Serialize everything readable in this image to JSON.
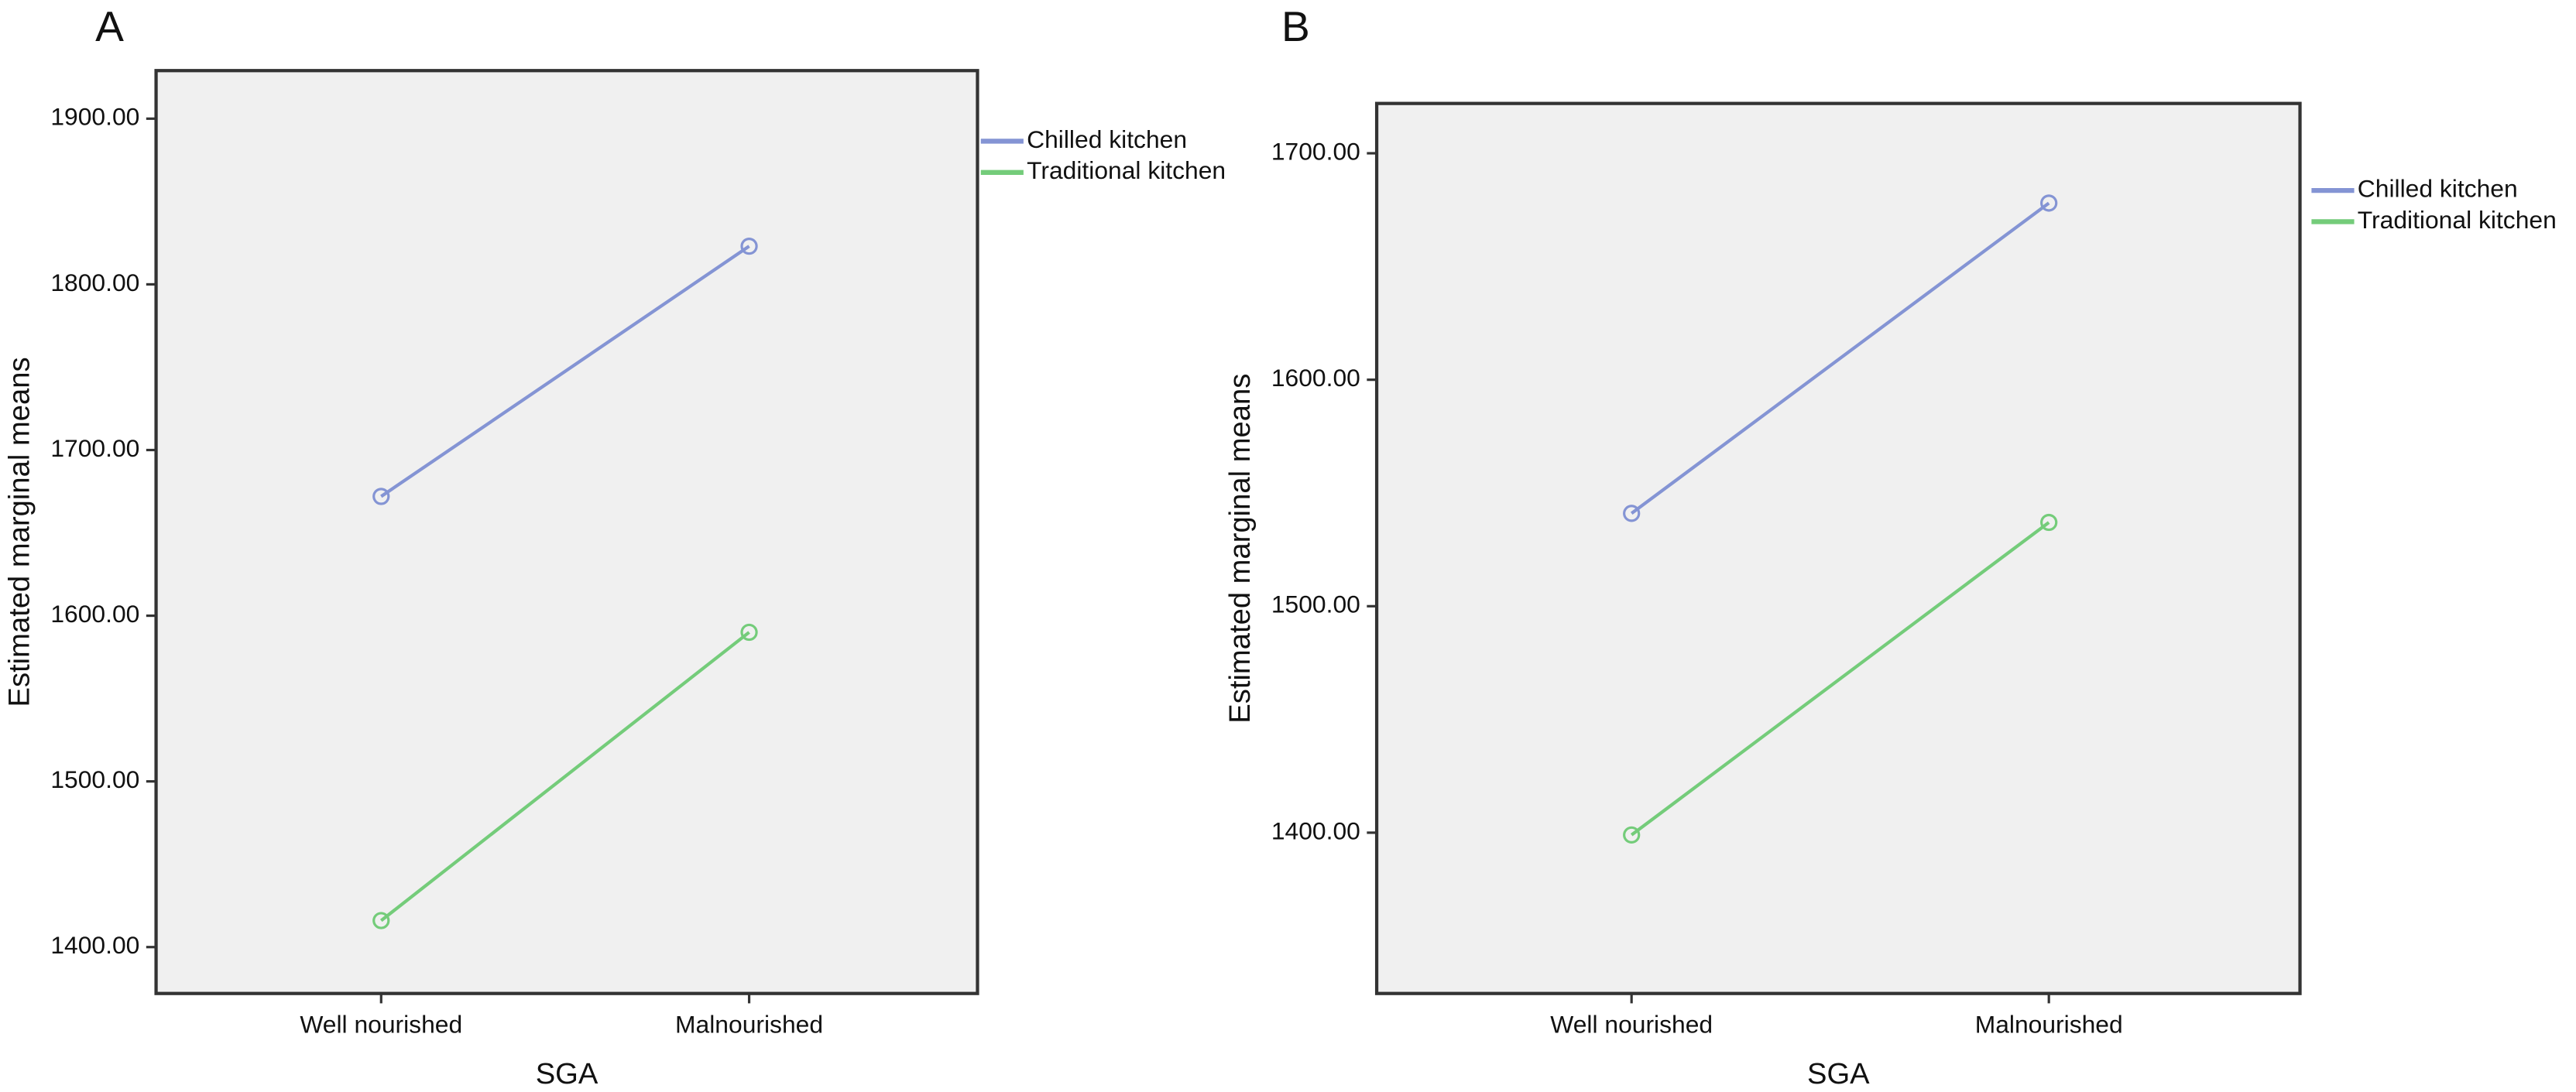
{
  "chart_data": [
    {
      "type": "line",
      "panel_label": "A",
      "x_label": "SGA",
      "y_label": "Estimated marginal means",
      "categories": [
        "Well nourished",
        "Malnourished"
      ],
      "series": [
        {
          "name": "Chilled kitchen",
          "color": "#8494d4",
          "values": [
            1672,
            1823
          ]
        },
        {
          "name": "Traditional kitchen",
          "color": "#74cc7a",
          "values": [
            1416,
            1590
          ]
        }
      ],
      "ylim": [
        1372,
        1929
      ],
      "yticks": [
        {
          "value": 1400,
          "label": "1400.00"
        },
        {
          "value": 1500,
          "label": "1500.00"
        },
        {
          "value": 1600,
          "label": "1600.00"
        },
        {
          "value": 1700,
          "label": "1700.00"
        },
        {
          "value": 1800,
          "label": "1800.00"
        },
        {
          "value": 1900,
          "label": "1900.00"
        }
      ]
    },
    {
      "type": "line",
      "panel_label": "B",
      "x_label": "SGA",
      "y_label": "Estimated marginal means",
      "categories": [
        "Well nourished",
        "Malnourished"
      ],
      "series": [
        {
          "name": "Chilled kitchen",
          "color": "#8494d4",
          "values": [
            1541,
            1678
          ]
        },
        {
          "name": "Traditional kitchen",
          "color": "#74cc7a",
          "values": [
            1399,
            1537
          ]
        }
      ],
      "ylim": [
        1329,
        1722
      ],
      "yticks": [
        {
          "value": 1400,
          "label": "1400.00"
        },
        {
          "value": 1500,
          "label": "1500.00"
        },
        {
          "value": 1600,
          "label": "1600.00"
        },
        {
          "value": 1700,
          "label": "1700.00"
        }
      ]
    }
  ]
}
